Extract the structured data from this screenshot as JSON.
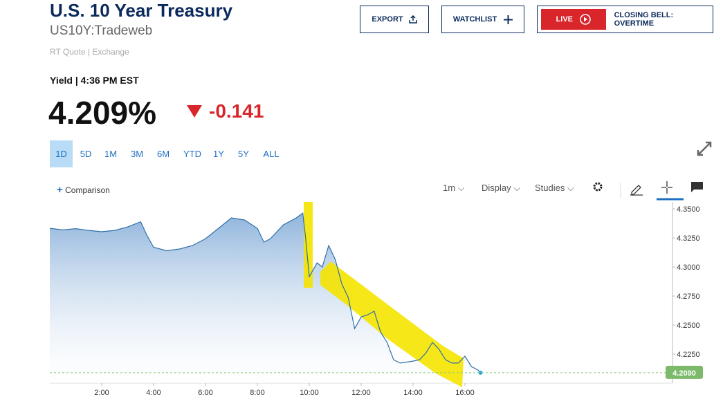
{
  "header": {
    "title": "U.S. 10 Year Treasury",
    "symbol": "US10Y:Tradeweb",
    "quote_source": "RT Quote | Exchange"
  },
  "actions": {
    "export": "EXPORT",
    "watchlist": "WATCHLIST",
    "live_badge": "LIVE",
    "live_label": "CLOSING BELL: OVERTIME"
  },
  "quote": {
    "label": "Yield | 4:36 PM EST",
    "price": "4.209%",
    "change": "-0.141"
  },
  "ranges": [
    "1D",
    "5D",
    "1M",
    "3M",
    "6M",
    "YTD",
    "1Y",
    "5Y",
    "ALL"
  ],
  "toolbar": {
    "comparison": "Comparison",
    "interval": "1m",
    "display": "Display",
    "studies": "Studies"
  },
  "chart_data": {
    "type": "line",
    "color": "#2f6fa8",
    "x": [
      0,
      0.5,
      1,
      1.5,
      2,
      2.5,
      3,
      3.5,
      3.75,
      4,
      4.5,
      5,
      5.5,
      6,
      6.5,
      7,
      7.5,
      8,
      8.25,
      8.5,
      9,
      9.5,
      9.75,
      9.85,
      10,
      10.3,
      10.5,
      10.75,
      11,
      11.25,
      11.5,
      11.75,
      12,
      12.25,
      12.5,
      12.75,
      13,
      13.25,
      13.5,
      14,
      14.25,
      14.5,
      14.75,
      15,
      15.25,
      15.5,
      15.75,
      16,
      16.25,
      16.5,
      16.6
    ],
    "values": [
      4.3333,
      4.332,
      4.333,
      4.3315,
      4.3304,
      4.3315,
      4.3345,
      4.339,
      4.327,
      4.317,
      4.314,
      4.3155,
      4.3185,
      4.3244,
      4.3333,
      4.3423,
      4.3405,
      4.3333,
      4.3214,
      4.3244,
      4.3363,
      4.3423,
      4.3464,
      4.327,
      4.2917,
      4.3036,
      4.3,
      4.3185,
      4.3066,
      4.2857,
      4.2738,
      4.247,
      4.257,
      4.2589,
      4.2619,
      4.244,
      4.2351,
      4.2202,
      4.2173,
      4.219,
      4.2202,
      4.2262,
      4.2351,
      4.2292,
      4.2202,
      4.2173,
      4.2173,
      4.2232,
      4.2143,
      4.2113,
      4.209
    ],
    "xlim": [
      0,
      24
    ],
    "ylim": [
      4.2,
      4.356
    ],
    "xticks": [
      {
        "value": 2,
        "label": "2:00"
      },
      {
        "value": 4,
        "label": "4:00"
      },
      {
        "value": 6,
        "label": "6:00"
      },
      {
        "value": 8,
        "label": "8:00"
      },
      {
        "value": 10,
        "label": "10:00"
      },
      {
        "value": 12,
        "label": "12:00"
      },
      {
        "value": 14,
        "label": "14:00"
      },
      {
        "value": 16,
        "label": "16:00"
      }
    ],
    "yticks": [
      {
        "value": 4.35,
        "label": "4.3500"
      },
      {
        "value": 4.325,
        "label": "4.3250"
      },
      {
        "value": 4.3,
        "label": "4.3000"
      },
      {
        "value": 4.275,
        "label": "4.2750"
      },
      {
        "value": 4.25,
        "label": "4.2500"
      },
      {
        "value": 4.225,
        "label": "4.2250"
      }
    ],
    "last_label": {
      "value": 4.209,
      "label": "4.2090"
    }
  }
}
